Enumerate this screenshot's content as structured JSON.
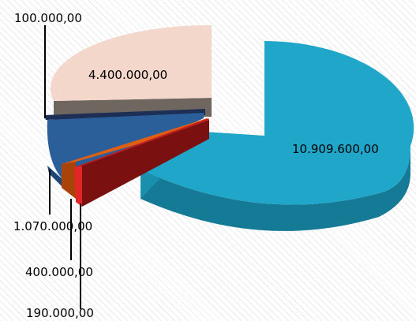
{
  "chart_data": {
    "type": "pie",
    "style": "3d-exploded",
    "slices": [
      {
        "label": "10.909.600,00",
        "value": 10909600,
        "color": "#1fa6c8"
      },
      {
        "label": "4.400.000,00",
        "value": 4400000,
        "color": "#f3d7cb"
      },
      {
        "label": "100.000,00",
        "value": 100000,
        "color": "#1d2f55"
      },
      {
        "label": "1.070.000,00",
        "value": 1070000,
        "color": "#2a5f9a"
      },
      {
        "label": "400.000,00",
        "value": 400000,
        "color": "#e15f12"
      },
      {
        "label": "190.000,00",
        "value": 190000,
        "color": "#c21d1d"
      }
    ],
    "title": "",
    "legend": "none"
  },
  "colors": {
    "gray_slice": "#6f665f"
  }
}
